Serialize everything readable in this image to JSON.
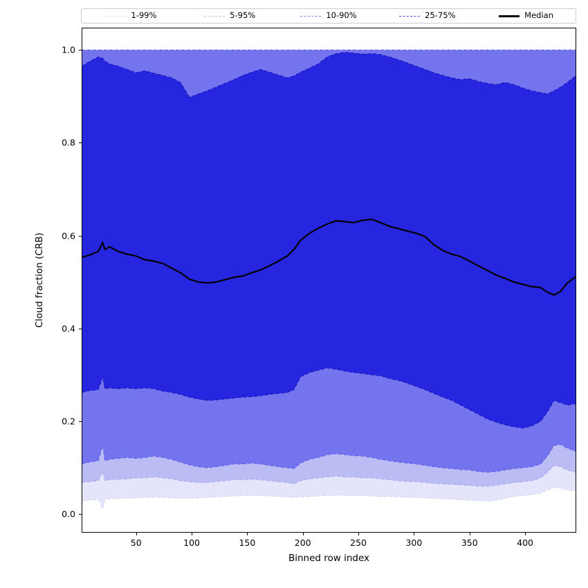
{
  "figure": {
    "xlabel": "Binned row index",
    "ylabel": "Cloud fraction (CRB)"
  },
  "legend": {
    "entries": [
      {
        "label": "1-99%",
        "color": "#dedef8",
        "style": "dashed"
      },
      {
        "label": "5-95%",
        "color": "#bcbcf5",
        "style": "dashed"
      },
      {
        "label": "10-90%",
        "color": "#7b7bef",
        "style": "dashed"
      },
      {
        "label": "25-75%",
        "color": "#4747e6",
        "style": "dashed"
      },
      {
        "label": "Median",
        "color": "#000000",
        "style": "solid"
      }
    ]
  },
  "chart_data": {
    "type": "area",
    "title": "",
    "xlabel": "Binned row index",
    "ylabel": "Cloud fraction (CRB)",
    "xlim": [
      1,
      446
    ],
    "ylim": [
      -0.04,
      1.048
    ],
    "xticks": [
      50,
      100,
      150,
      200,
      250,
      300,
      350,
      400
    ],
    "yticks": [
      0.0,
      0.2,
      0.4,
      0.6,
      0.8,
      1.0
    ],
    "grid": false,
    "legend_position": "top",
    "legend_entries": [
      "1-99%",
      "5-95%",
      "10-90%",
      "25-75%",
      "Median"
    ],
    "median_color": "#000000",
    "bands": [
      {
        "label": "1-99%",
        "low": "p1",
        "high": "p99",
        "fill": "#e4e4fb",
        "line": "#d2d2f2"
      },
      {
        "label": "5-95%",
        "low": "p5",
        "high": "p95",
        "fill": "#bcbcf5",
        "line": "#a6a6ef"
      },
      {
        "label": "10-90%",
        "low": "p10",
        "high": "p90",
        "fill": "#7474ee",
        "line": "#5858ea"
      },
      {
        "label": "25-75%",
        "low": "p25",
        "high": "p75",
        "fill": "#2626e0",
        "line": "#1414bb"
      }
    ],
    "x": [
      1,
      8,
      16,
      20,
      22,
      26,
      34,
      42,
      50,
      58,
      66,
      74,
      82,
      90,
      98,
      106,
      114,
      122,
      130,
      138,
      146,
      154,
      162,
      170,
      178,
      186,
      192,
      198,
      206,
      214,
      222,
      230,
      238,
      246,
      254,
      262,
      270,
      278,
      286,
      294,
      302,
      310,
      318,
      326,
      334,
      342,
      350,
      358,
      366,
      374,
      382,
      390,
      398,
      406,
      414,
      420,
      426,
      432,
      438,
      446
    ],
    "series": [
      {
        "name": "p99",
        "constant": 1.0
      },
      {
        "name": "p95",
        "constant": 1.0
      },
      {
        "name": "p90",
        "constant": 1.0
      },
      {
        "name": "p75",
        "values": [
          0.965,
          0.975,
          0.985,
          0.982,
          0.976,
          0.97,
          0.965,
          0.958,
          0.951,
          0.955,
          0.95,
          0.945,
          0.94,
          0.93,
          0.898,
          0.905,
          0.912,
          0.92,
          0.928,
          0.936,
          0.945,
          0.952,
          0.958,
          0.952,
          0.946,
          0.94,
          0.944,
          0.952,
          0.961,
          0.97,
          0.985,
          0.992,
          0.995,
          0.993,
          0.991,
          0.992,
          0.99,
          0.985,
          0.979,
          0.972,
          0.965,
          0.958,
          0.951,
          0.945,
          0.94,
          0.936,
          0.938,
          0.932,
          0.928,
          0.925,
          0.93,
          0.925,
          0.918,
          0.912,
          0.908,
          0.905,
          0.912,
          0.92,
          0.93,
          0.945
        ]
      },
      {
        "name": "median",
        "values": [
          0.553,
          0.558,
          0.566,
          0.585,
          0.57,
          0.576,
          0.566,
          0.56,
          0.556,
          0.548,
          0.545,
          0.54,
          0.53,
          0.52,
          0.506,
          0.5,
          0.498,
          0.5,
          0.505,
          0.51,
          0.513,
          0.52,
          0.526,
          0.535,
          0.545,
          0.556,
          0.57,
          0.59,
          0.605,
          0.616,
          0.625,
          0.632,
          0.63,
          0.628,
          0.633,
          0.635,
          0.628,
          0.62,
          0.615,
          0.61,
          0.605,
          0.598,
          0.58,
          0.568,
          0.56,
          0.555,
          0.545,
          0.535,
          0.525,
          0.515,
          0.508,
          0.5,
          0.495,
          0.49,
          0.488,
          0.478,
          0.472,
          0.48,
          0.498,
          0.512
        ]
      },
      {
        "name": "p25",
        "values": [
          0.262,
          0.266,
          0.268,
          0.296,
          0.27,
          0.272,
          0.27,
          0.272,
          0.27,
          0.272,
          0.27,
          0.265,
          0.262,
          0.258,
          0.252,
          0.248,
          0.245,
          0.246,
          0.248,
          0.25,
          0.252,
          0.253,
          0.255,
          0.258,
          0.26,
          0.262,
          0.268,
          0.296,
          0.305,
          0.31,
          0.315,
          0.312,
          0.308,
          0.305,
          0.303,
          0.3,
          0.298,
          0.292,
          0.288,
          0.282,
          0.275,
          0.268,
          0.26,
          0.252,
          0.245,
          0.235,
          0.225,
          0.215,
          0.205,
          0.198,
          0.192,
          0.188,
          0.185,
          0.19,
          0.2,
          0.22,
          0.245,
          0.24,
          0.235,
          0.238
        ]
      },
      {
        "name": "p10",
        "values": [
          0.108,
          0.112,
          0.115,
          0.148,
          0.115,
          0.118,
          0.12,
          0.122,
          0.12,
          0.122,
          0.125,
          0.122,
          0.118,
          0.112,
          0.106,
          0.102,
          0.1,
          0.102,
          0.105,
          0.108,
          0.108,
          0.11,
          0.108,
          0.105,
          0.102,
          0.1,
          0.098,
          0.11,
          0.118,
          0.122,
          0.128,
          0.13,
          0.128,
          0.126,
          0.125,
          0.122,
          0.118,
          0.115,
          0.112,
          0.11,
          0.108,
          0.105,
          0.102,
          0.1,
          0.098,
          0.096,
          0.095,
          0.092,
          0.09,
          0.092,
          0.095,
          0.098,
          0.1,
          0.102,
          0.108,
          0.125,
          0.148,
          0.15,
          0.142,
          0.135
        ]
      },
      {
        "name": "p5",
        "values": [
          0.068,
          0.07,
          0.072,
          0.092,
          0.072,
          0.074,
          0.075,
          0.076,
          0.078,
          0.078,
          0.08,
          0.078,
          0.076,
          0.072,
          0.07,
          0.068,
          0.068,
          0.07,
          0.072,
          0.074,
          0.074,
          0.075,
          0.074,
          0.072,
          0.07,
          0.068,
          0.065,
          0.072,
          0.076,
          0.078,
          0.08,
          0.082,
          0.08,
          0.08,
          0.078,
          0.078,
          0.076,
          0.074,
          0.072,
          0.07,
          0.07,
          0.068,
          0.066,
          0.065,
          0.064,
          0.063,
          0.062,
          0.06,
          0.06,
          0.062,
          0.065,
          0.068,
          0.07,
          0.072,
          0.078,
          0.09,
          0.105,
          0.102,
          0.095,
          0.09
        ]
      },
      {
        "name": "p1",
        "values": [
          0.028,
          0.03,
          0.032,
          0.012,
          0.032,
          0.033,
          0.034,
          0.034,
          0.035,
          0.036,
          0.036,
          0.036,
          0.035,
          0.034,
          0.034,
          0.035,
          0.036,
          0.037,
          0.038,
          0.039,
          0.04,
          0.04,
          0.04,
          0.039,
          0.038,
          0.037,
          0.036,
          0.037,
          0.038,
          0.039,
          0.04,
          0.041,
          0.04,
          0.04,
          0.04,
          0.039,
          0.038,
          0.038,
          0.037,
          0.036,
          0.036,
          0.035,
          0.034,
          0.033,
          0.032,
          0.031,
          0.03,
          0.029,
          0.028,
          0.03,
          0.034,
          0.038,
          0.04,
          0.042,
          0.045,
          0.052,
          0.058,
          0.056,
          0.052,
          0.05
        ]
      }
    ]
  }
}
